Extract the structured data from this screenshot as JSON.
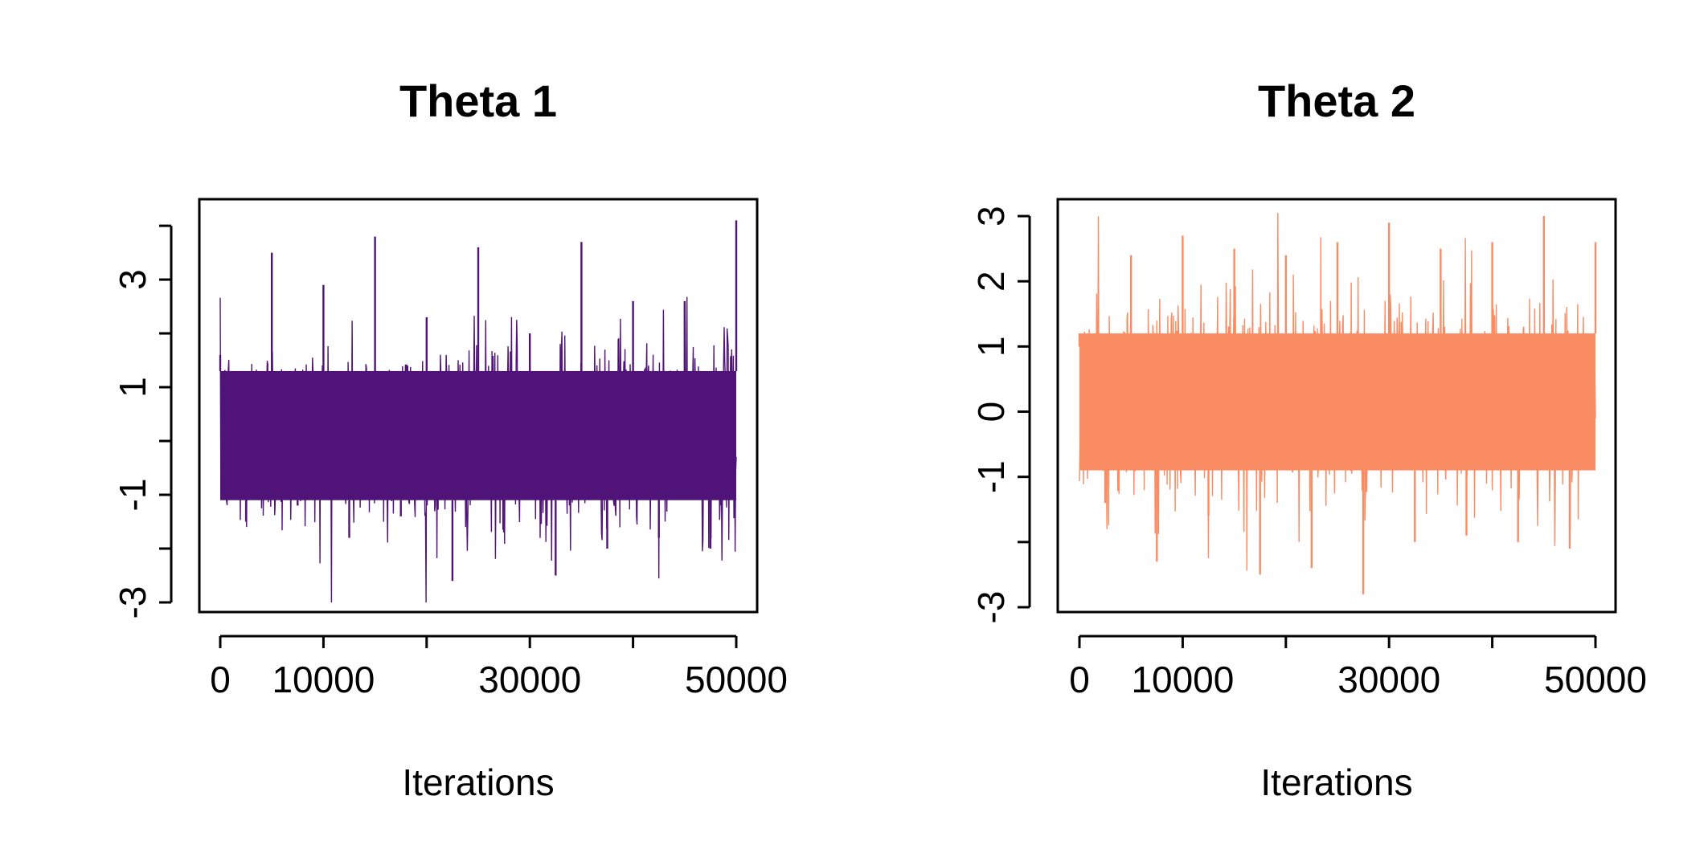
{
  "chart_data": [
    {
      "type": "line",
      "title": "Theta 1",
      "xlabel": "Iterations",
      "ylabel": "",
      "color": "#501478",
      "xlim": [
        0,
        50000
      ],
      "ylim": [
        -3.0,
        4.3
      ],
      "x_ticks": [
        0,
        10000,
        20000,
        30000,
        40000,
        50000
      ],
      "x_tick_labels": [
        "0",
        "10000",
        "",
        "30000",
        "",
        "50000"
      ],
      "y_ticks": [
        -3,
        -2,
        -1,
        0,
        1,
        2,
        3,
        4
      ],
      "y_tick_labels": [
        "-3",
        "",
        "-1",
        "",
        "1",
        "",
        "3",
        ""
      ],
      "series": [
        {
          "x": [
            0,
            2500,
            5000,
            7500,
            10000,
            12500,
            15000,
            17500,
            20000,
            22500,
            25000,
            27500,
            30000,
            32500,
            35000,
            37500,
            40000,
            42500,
            45000,
            47500,
            50000
          ],
          "y": [
            1.6,
            -1.5,
            3.5,
            -1.2,
            2.9,
            -1.8,
            3.8,
            -1.4,
            2.3,
            -2.6,
            3.6,
            -1.7,
            2.0,
            -2.5,
            3.7,
            -2.0,
            2.6,
            -1.8,
            2.6,
            -2.0,
            4.1
          ]
        }
      ],
      "band": {
        "lower": -1.1,
        "upper": 1.3
      },
      "grid": false
    },
    {
      "type": "line",
      "title": "Theta 2",
      "xlabel": "Iterations",
      "ylabel": "",
      "color": "#FA8C64",
      "xlim": [
        0,
        50000
      ],
      "ylim": [
        -3.0,
        3.05
      ],
      "x_ticks": [
        0,
        10000,
        20000,
        30000,
        40000,
        50000
      ],
      "x_tick_labels": [
        "0",
        "10000",
        "",
        "30000",
        "",
        "50000"
      ],
      "y_ticks": [
        -3,
        -2,
        -1,
        0,
        1,
        2,
        3
      ],
      "y_tick_labels": [
        "-3",
        "",
        "-1",
        "0",
        "1",
        "2",
        "3"
      ],
      "series": [
        {
          "x": [
            0,
            2500,
            5000,
            7500,
            10000,
            12500,
            15000,
            17500,
            20000,
            22500,
            25000,
            27500,
            30000,
            32500,
            35000,
            37500,
            40000,
            42500,
            45000,
            47500,
            50000
          ],
          "y": [
            1.0,
            -1.4,
            2.4,
            -2.3,
            2.7,
            -1.6,
            2.5,
            -2.5,
            2.4,
            -2.4,
            2.6,
            -2.8,
            2.9,
            -2.0,
            2.5,
            -1.9,
            2.6,
            -2.0,
            3.0,
            -2.1,
            2.6
          ]
        }
      ],
      "band": {
        "lower": -0.9,
        "upper": 1.2
      },
      "grid": false
    }
  ]
}
